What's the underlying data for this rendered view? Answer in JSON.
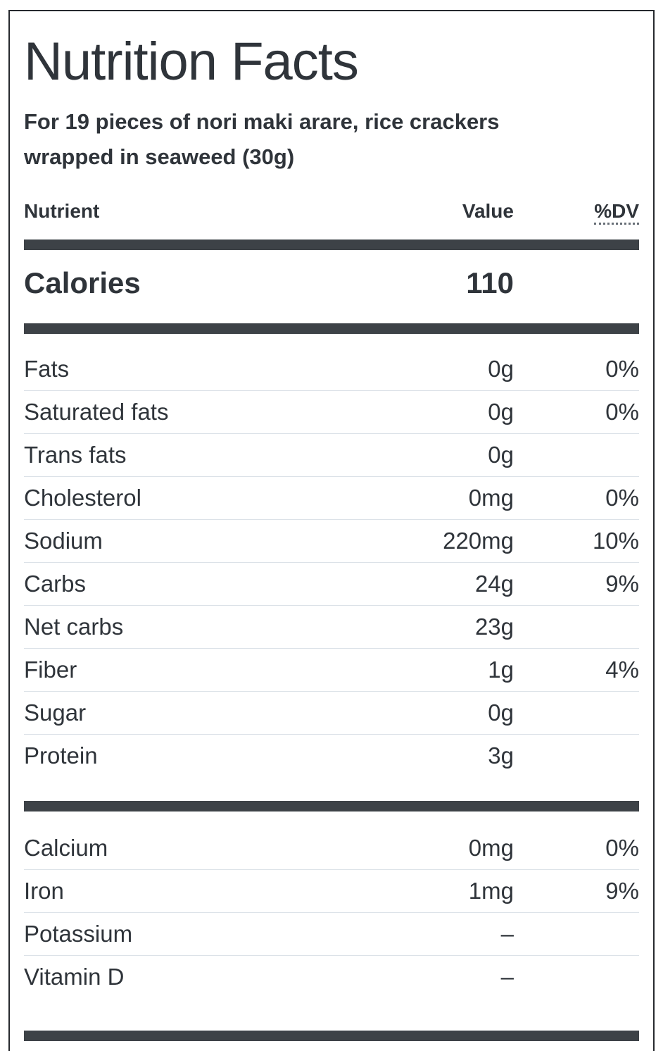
{
  "header": {
    "title": "Nutrition Facts",
    "subtitle": "For 19 pieces of nori maki arare, rice crackers wrapped in seaweed (30g)"
  },
  "columns": {
    "nutrient": "Nutrient",
    "value": "Value",
    "dv": "%DV"
  },
  "calories": {
    "label": "Calories",
    "value": "110"
  },
  "main_rows": [
    {
      "label": "Fats",
      "value": "0g",
      "dv": "0%"
    },
    {
      "label": "Saturated fats",
      "value": "0g",
      "dv": "0%"
    },
    {
      "label": "Trans fats",
      "value": "0g",
      "dv": ""
    },
    {
      "label": "Cholesterol",
      "value": "0mg",
      "dv": "0%"
    },
    {
      "label": "Sodium",
      "value": "220mg",
      "dv": "10%"
    },
    {
      "label": "Carbs",
      "value": "24g",
      "dv": "9%"
    },
    {
      "label": "Net carbs",
      "value": "23g",
      "dv": ""
    },
    {
      "label": "Fiber",
      "value": "1g",
      "dv": "4%"
    },
    {
      "label": "Sugar",
      "value": "0g",
      "dv": ""
    },
    {
      "label": "Protein",
      "value": "3g",
      "dv": ""
    }
  ],
  "mineral_rows": [
    {
      "label": "Calcium",
      "value": "0mg",
      "dv": "0%"
    },
    {
      "label": "Iron",
      "value": "1mg",
      "dv": "9%"
    },
    {
      "label": "Potassium",
      "value": "–",
      "dv": ""
    },
    {
      "label": "Vitamin D",
      "value": "–",
      "dv": ""
    }
  ],
  "colors": {
    "ink": "#2f343a",
    "bar": "#3d4247",
    "divider": "#dce2e8",
    "frame": "#26292e"
  }
}
